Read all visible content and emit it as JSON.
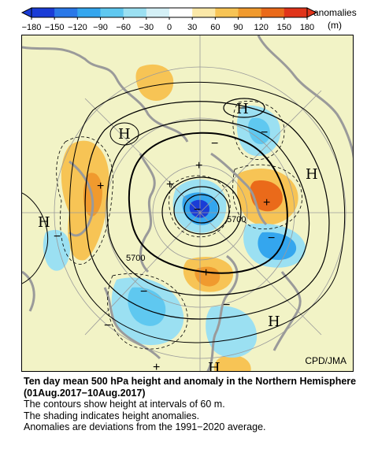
{
  "colorbar": {
    "ticks": [
      "−180",
      "−150",
      "−120",
      "−90",
      "−60",
      "−30",
      "0",
      "30",
      "60",
      "90",
      "120",
      "150",
      "180"
    ],
    "label_line1": "anomalies",
    "label_line2": "(m)",
    "colors": [
      "#1a3cd6",
      "#2a78e8",
      "#34a6ee",
      "#5fc8f0",
      "#9be0f2",
      "#d4f0f6",
      "#ffffff",
      "#fbe8a8",
      "#f7c455",
      "#f09a2e",
      "#ea6a1a",
      "#e0341a"
    ]
  },
  "map": {
    "credit": "CPD/JMA",
    "height_labels": [
      "5700",
      "5700"
    ],
    "high_symbol": "H",
    "plus_symbol": "+",
    "minus_symbol": "−",
    "colors": {
      "land": "#9a9a9a",
      "background": "#f2f3c6",
      "positive": "#f7c455",
      "strong_positive": "#ea6a1a",
      "negative": "#5fc8f0",
      "strong_negative": "#1a3cd6"
    }
  },
  "caption": {
    "title": "Ten day mean 500 hPa height and anomaly in the Northern Hemisphere (01Aug.2017−10Aug.2017)",
    "line1": "The contours show height at intervals of 60 m.",
    "line2": "The shading indicates height anomalies.",
    "line3": "Anomalies are deviations from the 1991−2020 average."
  }
}
